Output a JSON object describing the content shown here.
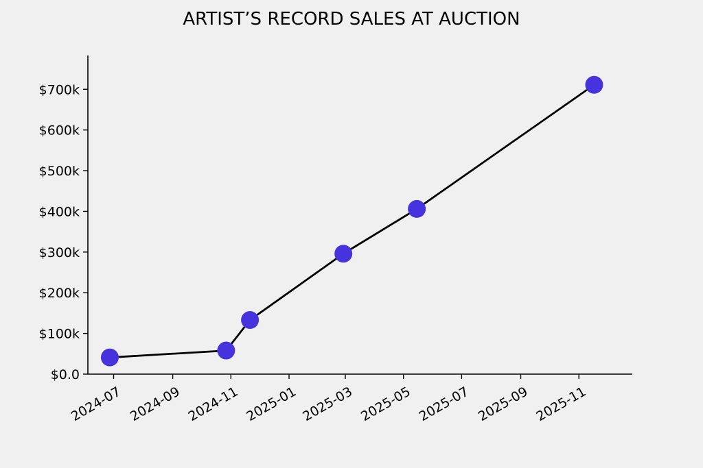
{
  "chart_data": {
    "type": "line",
    "title": "ARTIST’S RECORD SALES AT AUCTION",
    "xlabel": "",
    "ylabel": "",
    "x_axis_type": "date",
    "x_ticks": [
      "2024-07",
      "2024-09",
      "2024-11",
      "2025-01",
      "2025-03",
      "2025-05",
      "2025-07",
      "2025-09",
      "2025-11"
    ],
    "xlim": [
      "2024-06-04",
      "2025-12-27"
    ],
    "y_ticks": [
      0,
      100000,
      200000,
      300000,
      400000,
      500000,
      600000,
      700000
    ],
    "y_tick_labels": [
      "$0.0",
      "$100k",
      "$200k",
      "$300k",
      "$400k",
      "$500k",
      "$600k",
      "$700k"
    ],
    "ylim": [
      0,
      783000
    ],
    "grid": false,
    "legend": "none",
    "marker_color": "#4633de",
    "line_color": "#000000",
    "series": [
      {
        "points": [
          {
            "x": "2024-06-27",
            "y": 41000
          },
          {
            "x": "2024-10-27",
            "y": 58000
          },
          {
            "x": "2024-11-21",
            "y": 133000
          },
          {
            "x": "2025-02-27",
            "y": 296000
          },
          {
            "x": "2025-05-15",
            "y": 406000
          },
          {
            "x": "2025-11-17",
            "y": 711000
          }
        ]
      }
    ]
  }
}
